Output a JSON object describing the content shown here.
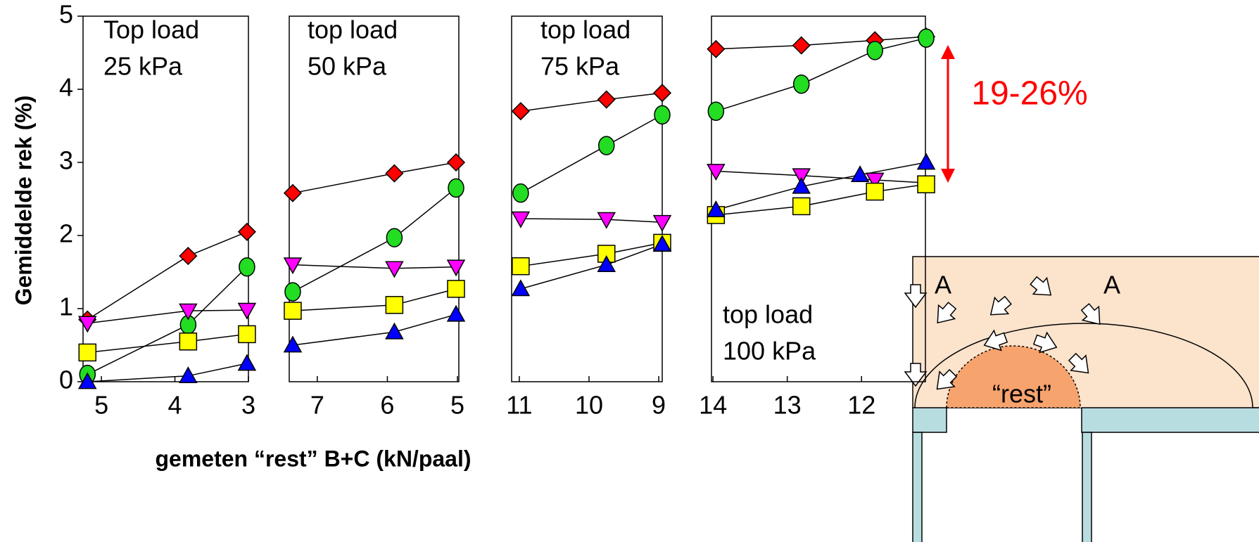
{
  "chart_data": [
    {
      "type": "line",
      "title": [
        "Top load",
        "25 kPa"
      ],
      "ylabel": "Gemiddelde rek (%)",
      "xlabel": "gemeten “rest” B+C (kN/paal)",
      "xlim": [
        5.25,
        3
      ],
      "xticks": [
        5,
        4,
        3
      ],
      "ylim": [
        0,
        5
      ],
      "yticks": [
        0,
        1,
        2,
        3,
        4,
        5
      ],
      "x": [
        5.19,
        3.82,
        3.02
      ],
      "series": [
        {
          "color": "#ff0000",
          "marker": "diamond",
          "values": [
            0.85,
            1.72,
            2.05
          ]
        },
        {
          "color": "#22dd22",
          "marker": "circle",
          "values": [
            0.1,
            0.78,
            1.57
          ]
        },
        {
          "color": "#ff00ff",
          "marker": "triangle-down",
          "values": [
            0.8,
            0.97,
            0.98
          ]
        },
        {
          "color": "#ffff00",
          "marker": "square",
          "values": [
            0.4,
            0.55,
            0.65
          ]
        },
        {
          "color": "#0000ff",
          "marker": "triangle-up",
          "values": [
            0.0,
            0.08,
            0.25
          ]
        }
      ]
    },
    {
      "type": "line",
      "title": [
        "top load",
        "50 kPa"
      ],
      "xlim": [
        7.4,
        4.98
      ],
      "xticks": [
        7,
        6,
        5
      ],
      "ylim": [
        0,
        5
      ],
      "x": [
        7.35,
        5.9,
        5.02
      ],
      "series": [
        {
          "color": "#ff0000",
          "marker": "diamond",
          "values": [
            2.58,
            2.85,
            3.0
          ]
        },
        {
          "color": "#22dd22",
          "marker": "circle",
          "values": [
            1.23,
            1.97,
            2.65
          ]
        },
        {
          "color": "#ff00ff",
          "marker": "triangle-down",
          "values": [
            1.6,
            1.55,
            1.57
          ]
        },
        {
          "color": "#ffff00",
          "marker": "square",
          "values": [
            0.97,
            1.05,
            1.27
          ]
        },
        {
          "color": "#0000ff",
          "marker": "triangle-up",
          "values": [
            0.5,
            0.68,
            0.92
          ]
        }
      ]
    },
    {
      "type": "line",
      "title": [
        "top load",
        "75 kPa"
      ],
      "xlim": [
        11.11,
        8.95
      ],
      "xticks": [
        11,
        10,
        9
      ],
      "ylim": [
        0,
        5
      ],
      "x": [
        10.98,
        9.75,
        8.95
      ],
      "series": [
        {
          "color": "#ff0000",
          "marker": "diamond",
          "values": [
            3.7,
            3.86,
            3.95
          ]
        },
        {
          "color": "#22dd22",
          "marker": "circle",
          "values": [
            2.58,
            3.23,
            3.65
          ]
        },
        {
          "color": "#ff00ff",
          "marker": "triangle-down",
          "values": [
            2.23,
            2.22,
            2.18
          ]
        },
        {
          "color": "#ffff00",
          "marker": "square",
          "values": [
            1.58,
            1.75,
            1.9
          ]
        },
        {
          "color": "#0000ff",
          "marker": "triangle-up",
          "values": [
            1.27,
            1.6,
            1.88
          ]
        }
      ]
    },
    {
      "type": "line",
      "title": [
        "top load",
        "100 kPa"
      ],
      "xlim": [
        14.02,
        11.14
      ],
      "xticks": [
        14,
        13,
        12
      ],
      "ylim": [
        0,
        5
      ],
      "x": [
        13.96,
        12.81,
        11.82,
        11.13
      ],
      "annotation": "19-26%",
      "series": [
        {
          "color": "#ff0000",
          "marker": "diamond",
          "values": [
            4.55,
            4.6,
            4.67,
            4.72
          ]
        },
        {
          "color": "#22dd22",
          "marker": "circle",
          "values": [
            3.7,
            4.07,
            4.53,
            4.7
          ]
        },
        {
          "color": "#ff00ff",
          "marker": "triangle-down",
          "values": [
            2.88,
            2.82,
            2.76,
            2.72
          ]
        },
        {
          "color": "#ffff00",
          "marker": "square",
          "values": [
            2.28,
            2.4,
            2.6,
            2.7
          ]
        },
        {
          "color": "#0000ff",
          "marker": "triangle-up",
          "x": [
            13.96,
            12.81,
            12.02,
            11.13
          ],
          "values": [
            2.35,
            2.67,
            2.83,
            3.0
          ]
        }
      ]
    }
  ],
  "diagram": {
    "labels": [
      "A",
      "A"
    ],
    "rest": "“rest”"
  }
}
